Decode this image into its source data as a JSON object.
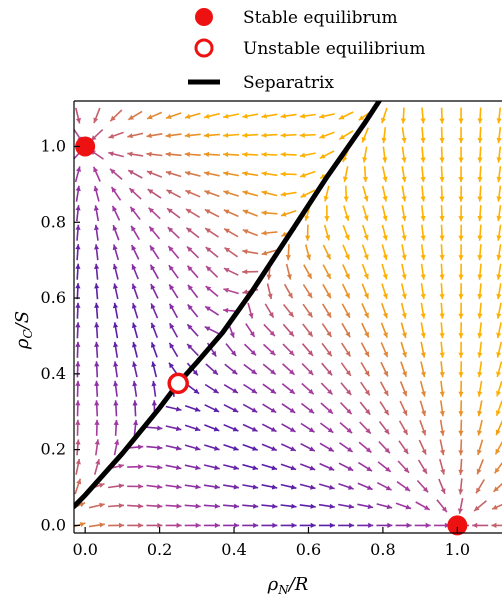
{
  "chart_data": {
    "type": "vector-field",
    "xlabel": "ρN/R",
    "xlabel_main": "ρ",
    "xlabel_sub": "N",
    "xlabel_tail": "/R",
    "ylabel": "ρC/S",
    "ylabel_main": "ρ",
    "ylabel_sub": "C",
    "ylabel_tail": "/S",
    "xlim": [
      -0.03,
      1.12
    ],
    "ylim": [
      -0.02,
      1.12
    ],
    "x_ticks": [
      0.0,
      0.2,
      0.4,
      0.6,
      0.8,
      1.0
    ],
    "x_tick_labels": [
      "0.0",
      "0.2",
      "0.4",
      "0.6",
      "0.8",
      "1.0"
    ],
    "y_ticks": [
      0.0,
      0.2,
      0.4,
      0.6,
      0.8,
      1.0
    ],
    "y_tick_labels": [
      "0.0",
      "0.2",
      "0.4",
      "0.6",
      "0.8",
      "1.0"
    ],
    "legend": {
      "placement": "top",
      "entries": [
        {
          "label": "Stable equilibrum",
          "marker": "filled-circle"
        },
        {
          "label": "Unstable equilibrium",
          "marker": "open-circle"
        },
        {
          "label": "Separatrix",
          "marker": "line"
        }
      ]
    },
    "stable_equilibria": [
      {
        "x": 0.0,
        "y": 1.0
      },
      {
        "x": 1.0,
        "y": 0.0
      }
    ],
    "unstable_equilibria": [
      {
        "x": 0.25,
        "y": 0.375
      }
    ],
    "separatrix": {
      "x": [
        -0.03,
        0.0,
        0.1,
        0.2,
        0.25,
        0.3,
        0.37,
        0.45,
        0.55,
        0.65,
        0.75,
        0.83
      ],
      "y": [
        0.05,
        0.08,
        0.19,
        0.31,
        0.375,
        0.43,
        0.51,
        0.62,
        0.77,
        0.92,
        1.06,
        1.18
      ]
    },
    "colors": {
      "stable": "#ee1111",
      "unstable": "#ee1111",
      "separatrix": "#000000",
      "arrow_low": "#2e0fb0",
      "arrow_mid": "#a83aa0",
      "arrow_high": "#ffb000"
    }
  }
}
